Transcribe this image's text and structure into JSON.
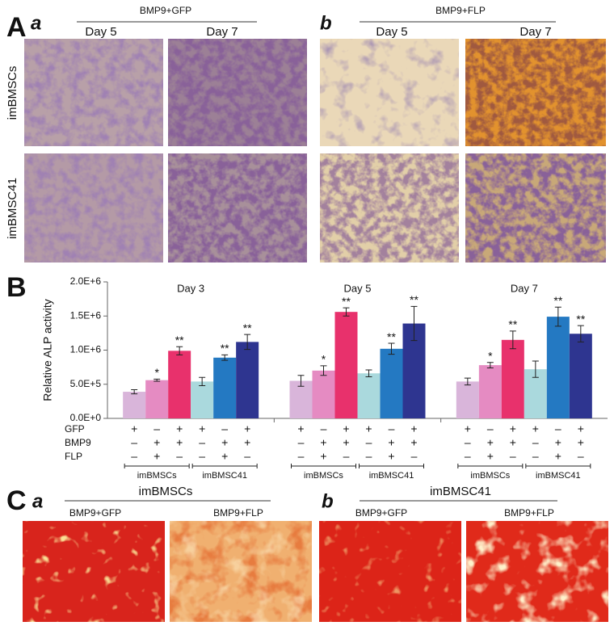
{
  "panel_a": {
    "letter": "A",
    "sub_a": "a",
    "sub_b": "b",
    "group_a": "BMP9+GFP",
    "group_b": "BMP9+FLP",
    "days": [
      "Day 5",
      "Day 7"
    ],
    "rows": [
      "imBMSCs",
      "imBMSC41"
    ]
  },
  "panel_b": {
    "letter": "B"
  },
  "chart_data": {
    "type": "bar",
    "categories": [
      "Day 3",
      "Day 5",
      "Day 7"
    ],
    "ylabel": "Relative ALP activity",
    "ylim": [
      0,
      2000000
    ],
    "yticks": [
      {
        "value": 0,
        "label": "0.0E+0"
      },
      {
        "value": 500000,
        "label": "5.0E+5"
      },
      {
        "value": 1000000,
        "label": "1.0E+6"
      },
      {
        "value": 1500000,
        "label": "1.5E+6"
      },
      {
        "value": 2000000,
        "label": "2.0E+6"
      }
    ],
    "series": [
      {
        "color": "#d9b5da",
        "values": [
          390000,
          550000,
          540000
        ],
        "errors": [
          30000,
          80000,
          50000
        ],
        "significance": [
          null,
          null,
          null
        ]
      },
      {
        "color": "#e58bc2",
        "values": [
          560000,
          700000,
          780000
        ],
        "errors": [
          15000,
          70000,
          40000
        ],
        "significance": [
          "*",
          "*",
          "*"
        ]
      },
      {
        "color": "#e8316c",
        "values": [
          990000,
          1560000,
          1150000
        ],
        "errors": [
          60000,
          60000,
          130000
        ],
        "significance": [
          "**",
          "**",
          "**"
        ]
      },
      {
        "color": "#aad9dd",
        "values": [
          540000,
          660000,
          720000
        ],
        "errors": [
          60000,
          50000,
          120000
        ],
        "significance": [
          null,
          null,
          null
        ]
      },
      {
        "color": "#2479c2",
        "values": [
          890000,
          1020000,
          1490000
        ],
        "errors": [
          40000,
          80000,
          140000
        ],
        "significance": [
          "**",
          "**",
          "**"
        ]
      },
      {
        "color": "#2e3590",
        "values": [
          1120000,
          1390000,
          1240000
        ],
        "errors": [
          110000,
          250000,
          120000
        ],
        "significance": [
          "**",
          "**",
          "**"
        ]
      }
    ],
    "treatment": [
      {
        "name": "GFP",
        "marks": [
          "+",
          "–",
          "+",
          "+",
          "–",
          "+"
        ]
      },
      {
        "name": "BMP9",
        "marks": [
          "–",
          "+",
          "+",
          "–",
          "+",
          "+"
        ]
      },
      {
        "name": "FLP",
        "marks": [
          "–",
          "+",
          "–",
          "–",
          "+",
          "–"
        ]
      }
    ],
    "groups": [
      "imBMSCs",
      "imBMSC41"
    ]
  },
  "panel_c": {
    "letter": "C",
    "sub_a": "a",
    "sub_b": "b",
    "group_a": "imBMSCs",
    "group_b": "imBMSC41",
    "conditions": [
      "BMP9+GFP",
      "BMP9+FLP"
    ]
  }
}
